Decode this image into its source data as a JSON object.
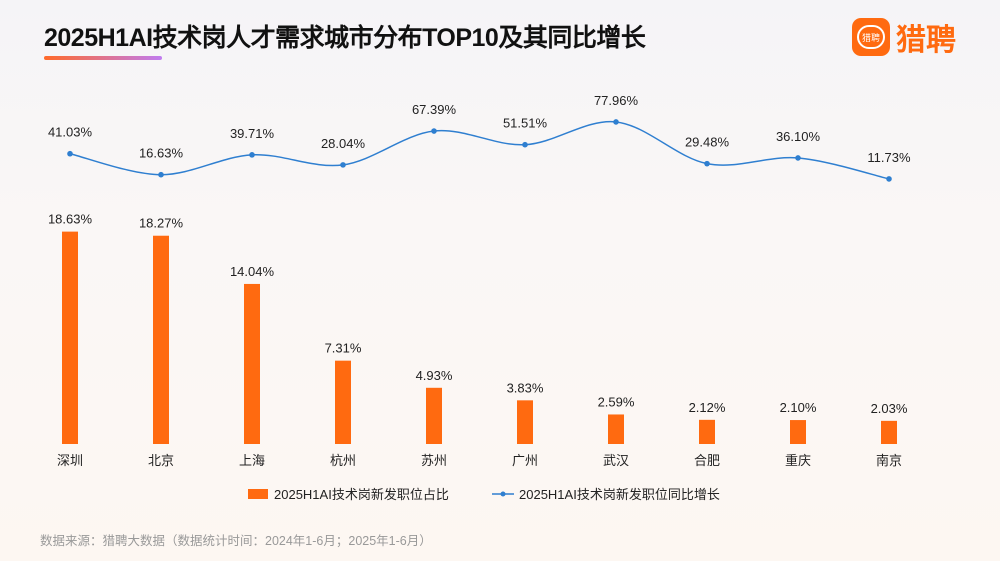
{
  "title": "2025H1AI技术岗人才需求城市分布TOP10及其同比增长",
  "logo": {
    "text": "猎聘",
    "badge_text": "猎聘",
    "color": "#ff6a10"
  },
  "chart_data": {
    "type": "bar+line",
    "categories": [
      "深圳",
      "北京",
      "上海",
      "杭州",
      "苏州",
      "广州",
      "武汉",
      "合肥",
      "重庆",
      "南京"
    ],
    "series": [
      {
        "name": "2025H1AI技术岗新发职位占比",
        "type": "bar",
        "color": "#ff6a10",
        "values": [
          18.63,
          18.27,
          14.04,
          7.31,
          4.93,
          3.83,
          2.59,
          2.12,
          2.1,
          2.03
        ],
        "labels": [
          "18.63%",
          "18.27%",
          "14.04%",
          "7.31%",
          "4.93%",
          "3.83%",
          "2.59%",
          "2.12%",
          "2.10%",
          "2.03%"
        ]
      },
      {
        "name": "2025H1AI技术岗新发职位同比增长",
        "type": "line",
        "color": "#2f7fd0",
        "values": [
          41.03,
          16.63,
          39.71,
          28.04,
          67.39,
          51.51,
          77.96,
          29.48,
          36.1,
          11.73
        ],
        "labels": [
          "41.03%",
          "16.63%",
          "39.71%",
          "28.04%",
          "67.39%",
          "51.51%",
          "77.96%",
          "29.48%",
          "36.10%",
          "11.73%"
        ]
      }
    ],
    "legend_position": "bottom",
    "grid": false
  },
  "source": "数据来源：猎聘大数据（数据统计时间：2024年1-6月；2025年1-6月）"
}
